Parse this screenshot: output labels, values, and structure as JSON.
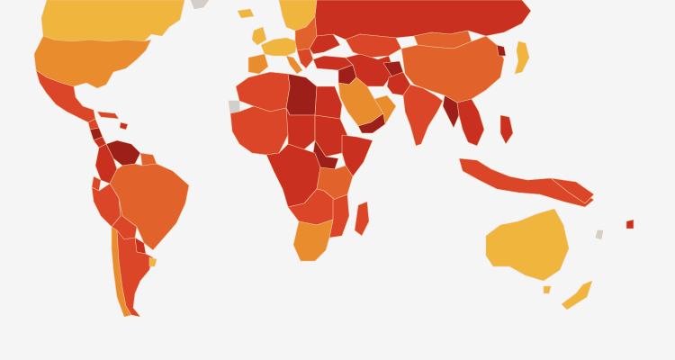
{
  "map": {
    "type": "choropleth-world",
    "palette": {
      "background": "#f5f5f5",
      "very_low": "#f0b53c",
      "low": "#e88c2e",
      "medium": "#e1632b",
      "high": "#db4628",
      "very_high": "#c9301f",
      "extreme": "#9c1f1a",
      "no_data": "#cfcfcf",
      "border": "#f0c8a0"
    }
  }
}
